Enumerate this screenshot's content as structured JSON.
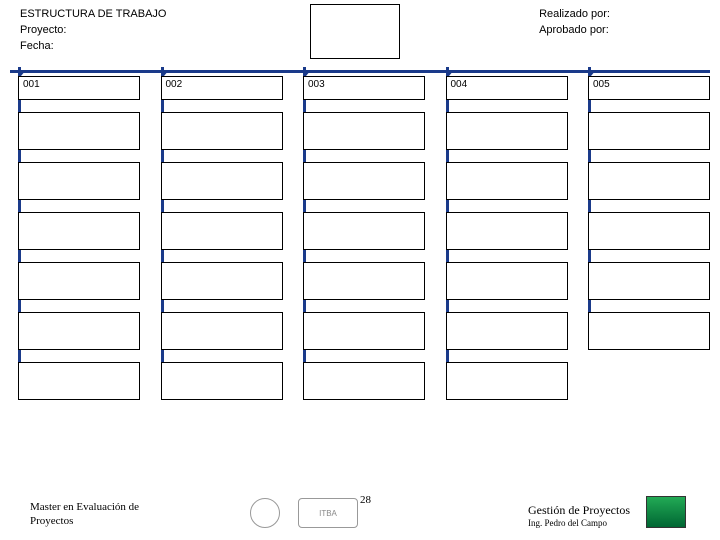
{
  "colors": {
    "line": "#1a3a8a",
    "box_border": "#000000",
    "bg": "#ffffff"
  },
  "header": {
    "title": "ESTRUCTURA DE TRABAJO",
    "project_label": "Proyecto:",
    "date_label": "Fecha:",
    "realized_label": "Realizado por:",
    "approved_label": "Aprobado por:"
  },
  "wbs": {
    "columns": [
      {
        "code": "001",
        "child_count": 6
      },
      {
        "code": "002",
        "child_count": 6
      },
      {
        "code": "003",
        "child_count": 6
      },
      {
        "code": "004",
        "child_count": 6
      },
      {
        "code": "005",
        "child_count": 5
      }
    ]
  },
  "footer": {
    "left_line1": "Master en Evaluación de",
    "left_line2": "Proyectos",
    "page_number": "28",
    "right_line1": "Gestión de Proyectos",
    "right_line2": "Ing. Pedro del Campo",
    "logo2_text": "ITBA"
  }
}
